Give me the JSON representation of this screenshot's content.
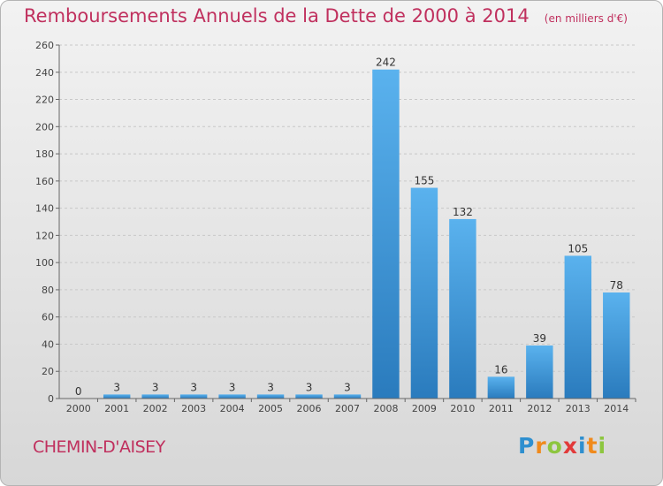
{
  "commune": "CHEMIN-D'AISEY",
  "brand": {
    "letters": [
      "P",
      "r",
      "o",
      "x",
      "i",
      "t",
      "i"
    ],
    "colors": [
      "#2e8fcf",
      "#f08a1c",
      "#8dc63f",
      "#e23a3a",
      "#2e8fcf",
      "#f08a1c",
      "#8dc63f"
    ]
  },
  "colors": {
    "title": "#c0305e",
    "bar_light": "#5ab2ee",
    "bar_dark": "#2a7bbd",
    "grid": "#c8c8c8"
  },
  "chart_data": {
    "type": "bar",
    "title": "Remboursements Annuels de la Dette de 2000 à 2014",
    "subtitle": "(en milliers d'€)",
    "categories": [
      "2000",
      "2001",
      "2002",
      "2003",
      "2004",
      "2005",
      "2006",
      "2007",
      "2008",
      "2009",
      "2010",
      "2011",
      "2012",
      "2013",
      "2014"
    ],
    "values": [
      0,
      3,
      3,
      3,
      3,
      3,
      3,
      3,
      242,
      155,
      132,
      16,
      39,
      105,
      78
    ],
    "ylim": [
      0,
      260
    ],
    "yticks": [
      0,
      20,
      40,
      60,
      80,
      100,
      120,
      140,
      160,
      180,
      200,
      220,
      240,
      260
    ],
    "grid": "horizontal-dashed",
    "legend": "none"
  }
}
